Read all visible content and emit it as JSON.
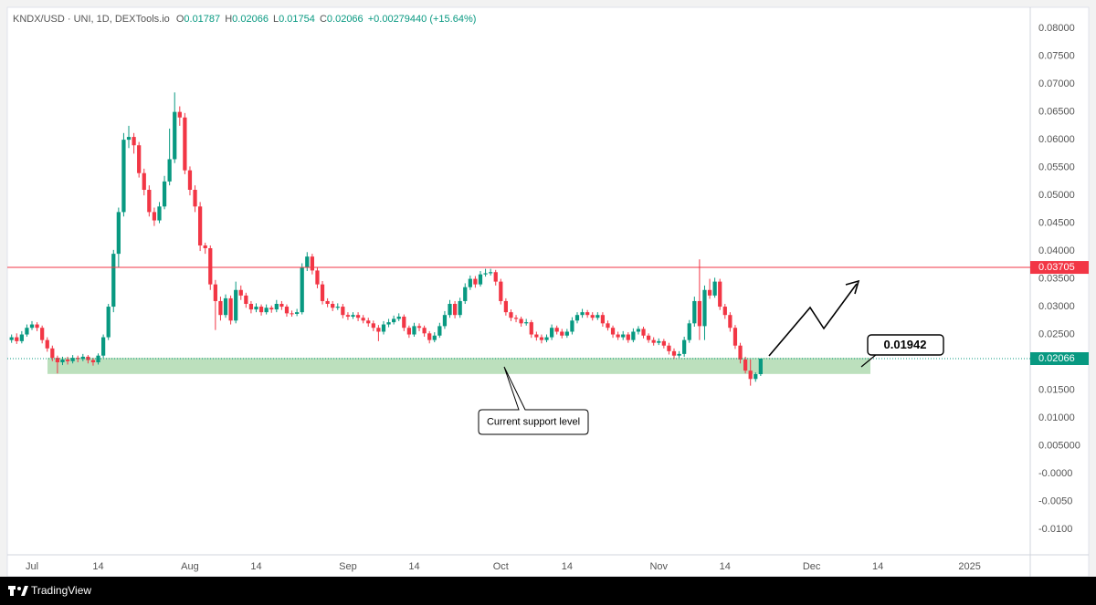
{
  "chart_data": {
    "type": "candlestick",
    "title": "KNDX/USD · UNI, 1D, DEXTools.io",
    "ohlc_labels": [
      "O",
      "H",
      "L",
      "C"
    ],
    "change": "+0.00279440 (+15.64%)",
    "up_color": "#089981",
    "down_color": "#f23645",
    "grid": false,
    "ylim": [
      -0.0146,
      0.0838
    ],
    "yticks": [
      {
        "value": 0.08,
        "label": "0.08000"
      },
      {
        "value": 0.075,
        "label": "0.07500"
      },
      {
        "value": 0.07,
        "label": "0.07000"
      },
      {
        "value": 0.065,
        "label": "0.06500"
      },
      {
        "value": 0.06,
        "label": "0.06000"
      },
      {
        "value": 0.055,
        "label": "0.05500"
      },
      {
        "value": 0.05,
        "label": "0.05000"
      },
      {
        "value": 0.045,
        "label": "0.04500"
      },
      {
        "value": 0.04,
        "label": "0.04000"
      },
      {
        "value": 0.035,
        "label": "0.03500"
      },
      {
        "value": 0.03,
        "label": "0.03000"
      },
      {
        "value": 0.025,
        "label": "0.02500"
      },
      {
        "value": 0.015,
        "label": "0.01500"
      },
      {
        "value": 0.01,
        "label": "0.01000"
      },
      {
        "value": 0.005,
        "label": "0.005000"
      },
      {
        "value": 0,
        "label": "-0.0000"
      },
      {
        "value": -0.005,
        "label": "-0.0050"
      },
      {
        "value": -0.01,
        "label": "-0.0100"
      }
    ],
    "xlim": [
      -0.84,
      199.9
    ],
    "xticks": [
      {
        "value": 4,
        "label": "Jul"
      },
      {
        "value": 17,
        "label": "14"
      },
      {
        "value": 35,
        "label": "Aug"
      },
      {
        "value": 48,
        "label": "14"
      },
      {
        "value": 66,
        "label": "Sep"
      },
      {
        "value": 79,
        "label": "14"
      },
      {
        "value": 96,
        "label": "Oct"
      },
      {
        "value": 109,
        "label": "14"
      },
      {
        "value": 127,
        "label": "Nov"
      },
      {
        "value": 140,
        "label": "14"
      },
      {
        "value": 157,
        "label": "Dec"
      },
      {
        "value": 170,
        "label": "14"
      },
      {
        "value": 188,
        "label": "2025"
      }
    ],
    "resistance_level": 0.03705,
    "resistance_color": "#f23645",
    "support_zone": [
      0.0179,
      0.0208
    ],
    "support_annotation": 0.01942,
    "callout": "Current support level",
    "brand": "TradingView",
    "candles": [
      [
        0.024,
        0.025,
        0.0235,
        0.0245
      ],
      [
        0.0245,
        0.0252,
        0.0233,
        0.0238
      ],
      [
        0.0238,
        0.0256,
        0.0234,
        0.025
      ],
      [
        0.025,
        0.0268,
        0.0246,
        0.0262
      ],
      [
        0.0262,
        0.0274,
        0.0258,
        0.0268
      ],
      [
        0.0268,
        0.0272,
        0.0256,
        0.0262
      ],
      [
        0.0262,
        0.0266,
        0.0234,
        0.024
      ],
      [
        0.024,
        0.0245,
        0.0219,
        0.0225
      ],
      [
        0.0225,
        0.023,
        0.0202,
        0.0208
      ],
      [
        0.0208,
        0.0212,
        0.018,
        0.02
      ],
      [
        0.02,
        0.021,
        0.0195,
        0.0205
      ],
      [
        0.0205,
        0.021,
        0.0196,
        0.0202
      ],
      [
        0.0202,
        0.0213,
        0.0198,
        0.0208
      ],
      [
        0.0208,
        0.0212,
        0.02,
        0.0206
      ],
      [
        0.0206,
        0.0215,
        0.0202,
        0.021
      ],
      [
        0.021,
        0.0213,
        0.0198,
        0.0204
      ],
      [
        0.0204,
        0.0208,
        0.0194,
        0.02
      ],
      [
        0.02,
        0.0216,
        0.0196,
        0.0212
      ],
      [
        0.0212,
        0.025,
        0.0208,
        0.0245
      ],
      [
        0.0245,
        0.0305,
        0.024,
        0.03
      ],
      [
        0.03,
        0.0402,
        0.029,
        0.0395
      ],
      [
        0.0395,
        0.0478,
        0.037,
        0.047
      ],
      [
        0.047,
        0.0612,
        0.0462,
        0.06
      ],
      [
        0.06,
        0.0625,
        0.0585,
        0.0605
      ],
      [
        0.0605,
        0.0612,
        0.0575,
        0.059
      ],
      [
        0.059,
        0.0596,
        0.0532,
        0.054
      ],
      [
        0.054,
        0.0548,
        0.05,
        0.051
      ],
      [
        0.051,
        0.0518,
        0.0462,
        0.047
      ],
      [
        0.047,
        0.0478,
        0.0445,
        0.0455
      ],
      [
        0.0455,
        0.0488,
        0.045,
        0.048
      ],
      [
        0.048,
        0.0535,
        0.0475,
        0.0525
      ],
      [
        0.0525,
        0.062,
        0.0518,
        0.0565
      ],
      [
        0.0565,
        0.0685,
        0.0558,
        0.065
      ],
      [
        0.065,
        0.066,
        0.0625,
        0.064
      ],
      [
        0.064,
        0.0648,
        0.0538,
        0.0545
      ],
      [
        0.0545,
        0.0552,
        0.05,
        0.051
      ],
      [
        0.051,
        0.0518,
        0.047,
        0.048
      ],
      [
        0.048,
        0.0488,
        0.04,
        0.041
      ],
      [
        0.041,
        0.0415,
        0.0395,
        0.0405
      ],
      [
        0.0405,
        0.041,
        0.033,
        0.034
      ],
      [
        0.034,
        0.0348,
        0.0258,
        0.031
      ],
      [
        0.031,
        0.0318,
        0.0275,
        0.0285
      ],
      [
        0.0285,
        0.0322,
        0.028,
        0.0315
      ],
      [
        0.0315,
        0.032,
        0.0268,
        0.0275
      ],
      [
        0.0275,
        0.0345,
        0.027,
        0.033
      ],
      [
        0.033,
        0.0338,
        0.0312,
        0.032
      ],
      [
        0.032,
        0.0325,
        0.0298,
        0.0305
      ],
      [
        0.0305,
        0.031,
        0.0288,
        0.0295
      ],
      [
        0.0295,
        0.0306,
        0.029,
        0.03
      ],
      [
        0.03,
        0.0304,
        0.0284,
        0.029
      ],
      [
        0.029,
        0.0304,
        0.0286,
        0.0298
      ],
      [
        0.0298,
        0.0302,
        0.0289,
        0.0295
      ],
      [
        0.0295,
        0.0312,
        0.029,
        0.0305
      ],
      [
        0.0305,
        0.031,
        0.0294,
        0.03
      ],
      [
        0.03,
        0.0304,
        0.0282,
        0.0288
      ],
      [
        0.0288,
        0.0293,
        0.0282,
        0.0287
      ],
      [
        0.0287,
        0.0296,
        0.0283,
        0.029
      ],
      [
        0.029,
        0.0378,
        0.0286,
        0.037
      ],
      [
        0.037,
        0.0398,
        0.0364,
        0.039
      ],
      [
        0.039,
        0.0395,
        0.0358,
        0.0365
      ],
      [
        0.0365,
        0.037,
        0.0333,
        0.034
      ],
      [
        0.034,
        0.0346,
        0.0304,
        0.031
      ],
      [
        0.031,
        0.0315,
        0.0299,
        0.0305
      ],
      [
        0.0305,
        0.031,
        0.0292,
        0.0298
      ],
      [
        0.0298,
        0.0306,
        0.0294,
        0.03
      ],
      [
        0.03,
        0.0305,
        0.0279,
        0.0285
      ],
      [
        0.0285,
        0.029,
        0.0276,
        0.0282
      ],
      [
        0.0282,
        0.029,
        0.0278,
        0.0285
      ],
      [
        0.0285,
        0.029,
        0.0274,
        0.028
      ],
      [
        0.028,
        0.0285,
        0.027,
        0.0275
      ],
      [
        0.0275,
        0.028,
        0.0264,
        0.027
      ],
      [
        0.027,
        0.0275,
        0.0256,
        0.0262
      ],
      [
        0.0262,
        0.0267,
        0.0238,
        0.0255
      ],
      [
        0.0255,
        0.0274,
        0.025,
        0.0268
      ],
      [
        0.0268,
        0.0278,
        0.0263,
        0.0272
      ],
      [
        0.0272,
        0.0284,
        0.0268,
        0.0278
      ],
      [
        0.0278,
        0.0288,
        0.0274,
        0.0282
      ],
      [
        0.0282,
        0.0286,
        0.0256,
        0.0262
      ],
      [
        0.0262,
        0.0266,
        0.0244,
        0.025
      ],
      [
        0.025,
        0.0271,
        0.0246,
        0.0265
      ],
      [
        0.0265,
        0.027,
        0.0256,
        0.0262
      ],
      [
        0.0262,
        0.0266,
        0.0246,
        0.0252
      ],
      [
        0.0252,
        0.0256,
        0.0234,
        0.024
      ],
      [
        0.024,
        0.0254,
        0.0236,
        0.0248
      ],
      [
        0.0248,
        0.0271,
        0.0244,
        0.0265
      ],
      [
        0.0265,
        0.0292,
        0.026,
        0.0285
      ],
      [
        0.0285,
        0.0312,
        0.028,
        0.0305
      ],
      [
        0.0305,
        0.031,
        0.0279,
        0.0285
      ],
      [
        0.0285,
        0.0316,
        0.028,
        0.031
      ],
      [
        0.031,
        0.0342,
        0.0305,
        0.0335
      ],
      [
        0.0335,
        0.0356,
        0.033,
        0.035
      ],
      [
        0.035,
        0.0355,
        0.0334,
        0.034
      ],
      [
        0.034,
        0.0364,
        0.0336,
        0.0358
      ],
      [
        0.0358,
        0.0368,
        0.0354,
        0.036
      ],
      [
        0.036,
        0.0368,
        0.0356,
        0.0362
      ],
      [
        0.0362,
        0.0366,
        0.0338,
        0.0345
      ],
      [
        0.0345,
        0.035,
        0.0304,
        0.031
      ],
      [
        0.031,
        0.0315,
        0.0284,
        0.029
      ],
      [
        0.029,
        0.0295,
        0.0274,
        0.028
      ],
      [
        0.028,
        0.0285,
        0.0272,
        0.0278
      ],
      [
        0.0278,
        0.0282,
        0.0264,
        0.027
      ],
      [
        0.027,
        0.0278,
        0.0266,
        0.0272
      ],
      [
        0.0272,
        0.0276,
        0.0244,
        0.025
      ],
      [
        0.025,
        0.0255,
        0.0239,
        0.0245
      ],
      [
        0.0245,
        0.025,
        0.0234,
        0.024
      ],
      [
        0.024,
        0.025,
        0.0236,
        0.0245
      ],
      [
        0.0245,
        0.0268,
        0.024,
        0.0262
      ],
      [
        0.0262,
        0.0266,
        0.025,
        0.0255
      ],
      [
        0.0255,
        0.026,
        0.0243,
        0.0248
      ],
      [
        0.0248,
        0.026,
        0.0244,
        0.0255
      ],
      [
        0.0255,
        0.0281,
        0.025,
        0.0275
      ],
      [
        0.0275,
        0.029,
        0.027,
        0.0285
      ],
      [
        0.0285,
        0.0296,
        0.028,
        0.029
      ],
      [
        0.029,
        0.0294,
        0.028,
        0.0285
      ],
      [
        0.0285,
        0.029,
        0.0275,
        0.028
      ],
      [
        0.028,
        0.029,
        0.0276,
        0.0285
      ],
      [
        0.0285,
        0.029,
        0.0264,
        0.027
      ],
      [
        0.027,
        0.0275,
        0.0257,
        0.0262
      ],
      [
        0.0262,
        0.0266,
        0.0244,
        0.025
      ],
      [
        0.025,
        0.0255,
        0.024,
        0.0245
      ],
      [
        0.0245,
        0.0256,
        0.024,
        0.025
      ],
      [
        0.025,
        0.0254,
        0.0235,
        0.024
      ],
      [
        0.024,
        0.0261,
        0.0236,
        0.0255
      ],
      [
        0.0255,
        0.0265,
        0.025,
        0.026
      ],
      [
        0.026,
        0.0264,
        0.0243,
        0.0248
      ],
      [
        0.0248,
        0.0252,
        0.0235,
        0.024
      ],
      [
        0.024,
        0.0245,
        0.023,
        0.0235
      ],
      [
        0.0235,
        0.0243,
        0.0231,
        0.0238
      ],
      [
        0.0238,
        0.0242,
        0.0225,
        0.023
      ],
      [
        0.023,
        0.0235,
        0.0214,
        0.022
      ],
      [
        0.022,
        0.0225,
        0.0206,
        0.0212
      ],
      [
        0.0212,
        0.022,
        0.0208,
        0.0215
      ],
      [
        0.0215,
        0.0246,
        0.021,
        0.024
      ],
      [
        0.024,
        0.0276,
        0.0235,
        0.027
      ],
      [
        0.027,
        0.0318,
        0.0264,
        0.031
      ],
      [
        0.031,
        0.0385,
        0.024,
        0.0265
      ],
      [
        0.0265,
        0.0338,
        0.024,
        0.033
      ],
      [
        0.033,
        0.035,
        0.0314,
        0.032
      ],
      [
        0.032,
        0.0352,
        0.0316,
        0.0345
      ],
      [
        0.0345,
        0.035,
        0.0294,
        0.03
      ],
      [
        0.03,
        0.0305,
        0.0278,
        0.0285
      ],
      [
        0.0285,
        0.029,
        0.0255,
        0.0262
      ],
      [
        0.0262,
        0.0267,
        0.0224,
        0.023
      ],
      [
        0.023,
        0.0235,
        0.0198,
        0.0205
      ],
      [
        0.0205,
        0.021,
        0.018,
        0.0185
      ],
      [
        0.0185,
        0.0205,
        0.0158,
        0.017
      ],
      [
        0.017,
        0.0182,
        0.0165,
        0.01787
      ],
      [
        0.01787,
        0.02066,
        0.01754,
        0.02066
      ]
    ]
  }
}
